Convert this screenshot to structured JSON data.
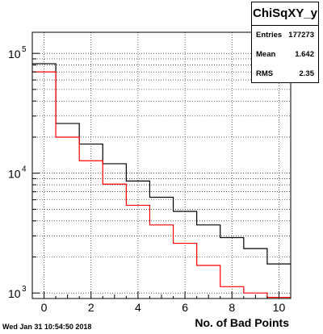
{
  "stats": {
    "title": "ChiSqXY_y",
    "rows": [
      {
        "label": "Entries",
        "value": "177273"
      },
      {
        "label": "Mean",
        "value": "1.642"
      },
      {
        "label": "RMS",
        "value": "2.35"
      }
    ]
  },
  "footer": {
    "timestamp": "Wed Jan 31 10:54:50 2018"
  },
  "colors": {
    "series_black": "#000000",
    "series_red": "#ff0000",
    "grid": "#000000"
  },
  "chart_data": {
    "type": "histogram",
    "title": "",
    "xlabel": "No. of Bad Points",
    "ylabel": "",
    "xlim": [
      -0.5,
      10.5
    ],
    "ylim_log": [
      900,
      150000
    ],
    "log_y": true,
    "grid": true,
    "x_ticks": [
      0,
      2,
      4,
      6,
      8,
      10
    ],
    "y_ticks": [
      {
        "value": 1000,
        "base": "10",
        "exp": "3"
      },
      {
        "value": 10000,
        "base": "10",
        "exp": "4"
      },
      {
        "value": 100000,
        "base": "10",
        "exp": "5"
      }
    ],
    "bin_edges": [
      -0.5,
      0.5,
      1.5,
      2.5,
      3.5,
      4.5,
      5.5,
      6.5,
      7.5,
      8.5,
      9.5,
      10.5
    ],
    "series": [
      {
        "color": "#000000",
        "values": [
          82000,
          26000,
          17500,
          12000,
          8600,
          6300,
          4800,
          3700,
          2900,
          2350,
          1750
        ]
      },
      {
        "color": "#ff0000",
        "values": [
          70000,
          20000,
          12700,
          8100,
          5400,
          3700,
          2600,
          1700,
          1130,
          1000,
          920
        ]
      }
    ]
  }
}
